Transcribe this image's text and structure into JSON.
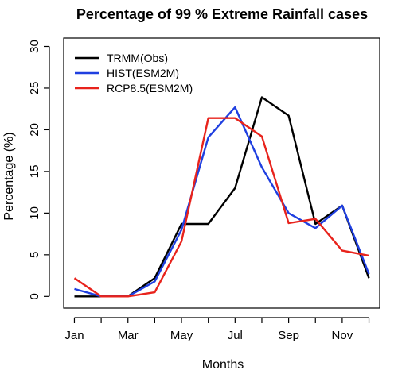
{
  "chart_data": {
    "type": "line",
    "title": "Percentage of  99 % Extreme Rainfall cases",
    "xlabel": "Months",
    "ylabel": "Percentage (%)",
    "ylim": [
      0,
      30
    ],
    "y_ticks": [
      "0",
      "5",
      "10",
      "15",
      "20",
      "25",
      "30"
    ],
    "x_ticks": [
      "Jan",
      "Mar",
      "May",
      "Jul",
      "Sep",
      "Nov"
    ],
    "x": [
      1,
      2,
      3,
      4,
      5,
      6,
      7,
      8,
      9,
      10,
      11,
      12
    ],
    "grid": false,
    "legend_position": "top-left",
    "series": [
      {
        "name": "TRMM(Obs)",
        "color": "#000000",
        "values": [
          0,
          0,
          0,
          2.2,
          8.7,
          8.7,
          13.0,
          23.9,
          21.7,
          8.7,
          10.9,
          2.2
        ]
      },
      {
        "name": "HIST(ESM2M)",
        "color": "#1f3fe0",
        "values": [
          0.9,
          0,
          0,
          1.8,
          8.0,
          19.1,
          22.7,
          15.5,
          10.0,
          8.2,
          10.9,
          2.7
        ]
      },
      {
        "name": "RCP8.5(ESM2M)",
        "color": "#e8231c",
        "values": [
          2.2,
          0,
          0,
          0.5,
          6.6,
          21.4,
          21.4,
          19.2,
          8.8,
          9.3,
          5.5,
          4.9
        ]
      }
    ]
  }
}
